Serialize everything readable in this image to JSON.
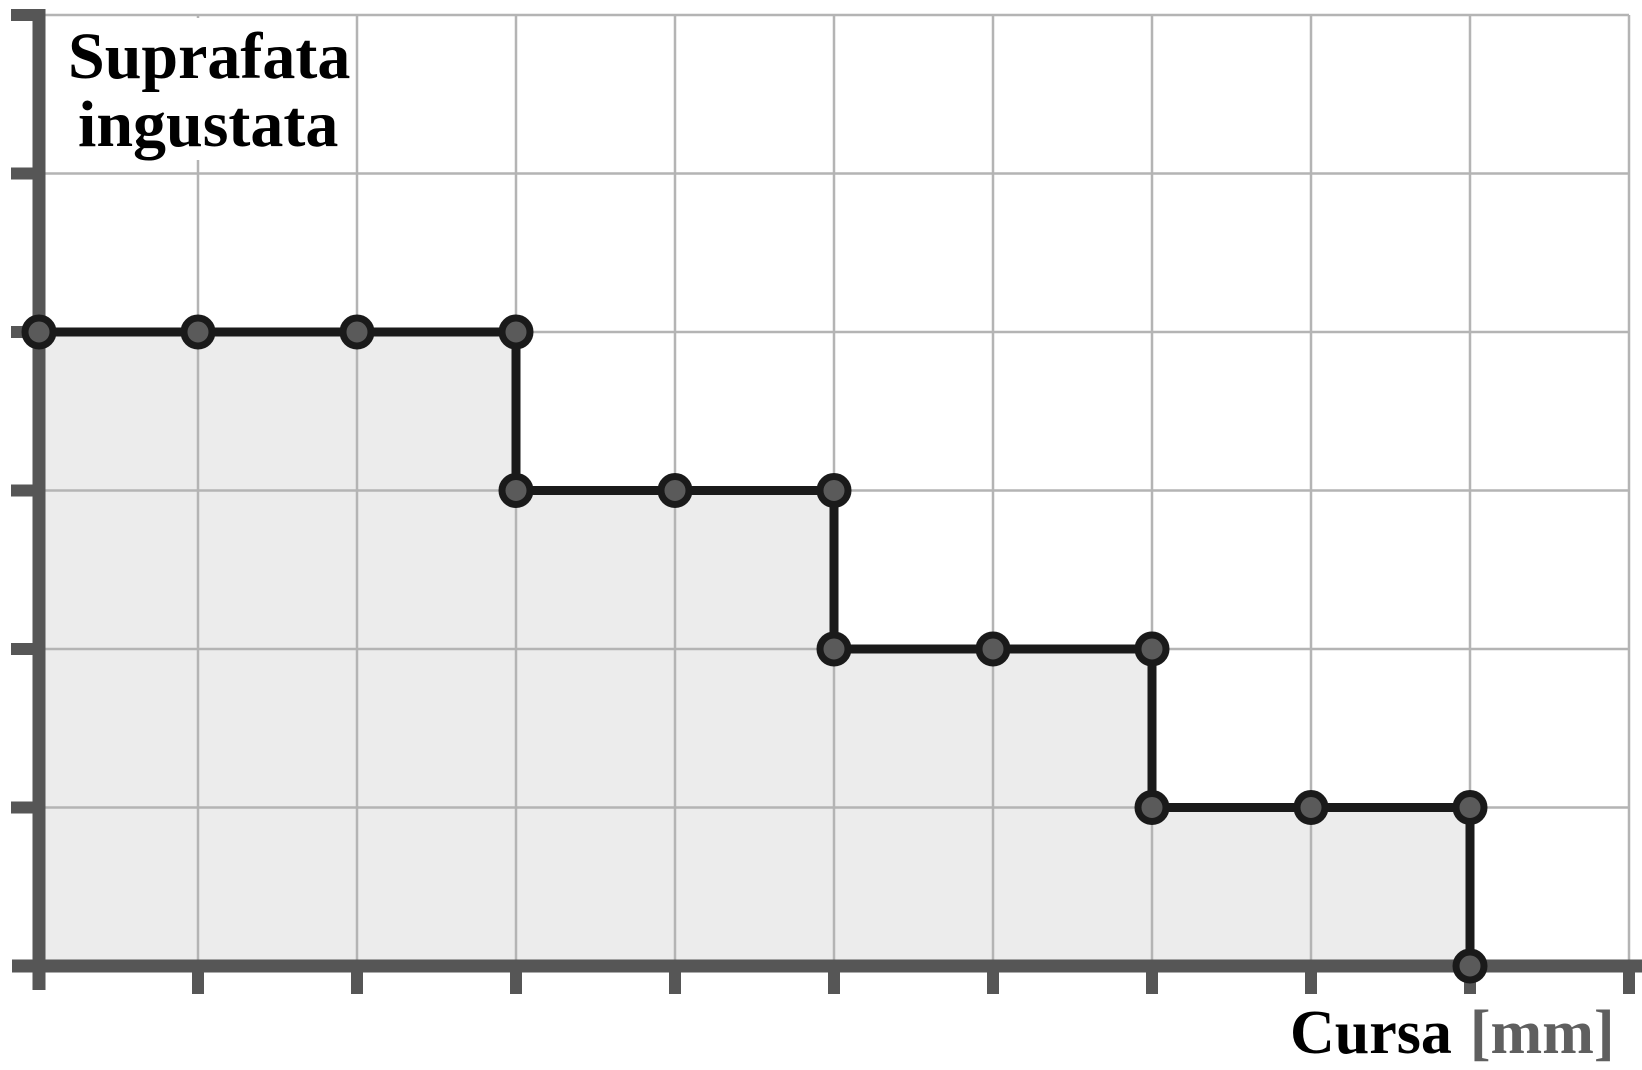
{
  "title": {
    "line1": "Suprafata",
    "line2": "ingustata"
  },
  "x_axis_label": {
    "name": "Cursa",
    "unit": "[mm]"
  },
  "colors": {
    "background": "#ffffff",
    "axis": "#565656",
    "grid": "#b4b4b4",
    "step_line": "#1a1a1a",
    "marker_fill": "#5a5a5a",
    "marker_stroke": "#1a1a1a",
    "area_fill": "#ececec",
    "title_text": "#000000",
    "xlabel_text": "#000000",
    "xlabel_unit": "#5f5f5f"
  },
  "chart_data": {
    "type": "area",
    "subtype": "step-staircase-descending",
    "title": "Suprafata ingustata",
    "ylabel": "Suprafata ingustata",
    "xlabel": "Cursa [mm]",
    "x": [
      0,
      1,
      2,
      3,
      3,
      4,
      5,
      5,
      6,
      7,
      7,
      8,
      9,
      9
    ],
    "y": [
      4,
      4,
      4,
      4,
      3,
      3,
      3,
      2,
      2,
      2,
      1,
      1,
      1,
      0
    ],
    "xlim": [
      0,
      10
    ],
    "ylim": [
      0,
      6
    ],
    "grid": true,
    "axis_tick_labels": "none (unlabeled grid units, ticks at every gridline)",
    "marker": "filled circle at every step vertex",
    "area_filled_below_curve": true,
    "legend_position": "none",
    "steps_description": [
      {
        "level": 4,
        "x_from": 0,
        "x_to": 3
      },
      {
        "level": 3,
        "x_from": 3,
        "x_to": 5
      },
      {
        "level": 2,
        "x_from": 5,
        "x_to": 7
      },
      {
        "level": 1,
        "x_from": 7,
        "x_to": 9
      },
      {
        "level": 0,
        "x_at": 9
      }
    ]
  }
}
